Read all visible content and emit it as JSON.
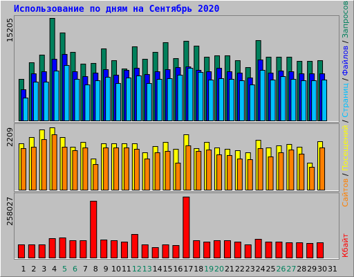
{
  "chart_data": {
    "type": "bar",
    "title": "Использование по дням на Сентябрь 2020",
    "legend_separator": " / ",
    "categories": [
      "1",
      "2",
      "3",
      "4",
      "5",
      "6",
      "7",
      "8",
      "9",
      "10",
      "11",
      "12",
      "13",
      "14",
      "15",
      "16",
      "17",
      "18",
      "19",
      "20",
      "21",
      "22",
      "23",
      "24",
      "25",
      "26",
      "27",
      "28",
      "29",
      "30",
      "31"
    ],
    "category_colors": [
      "#000000",
      "#000000",
      "#000000",
      "#000000",
      "#00805c",
      "#00805c",
      "#000000",
      "#000000",
      "#000000",
      "#000000",
      "#000000",
      "#00805c",
      "#00805c",
      "#000000",
      "#000000",
      "#000000",
      "#000000",
      "#000000",
      "#00805c",
      "#00805c",
      "#000000",
      "#000000",
      "#000000",
      "#000000",
      "#000000",
      "#00805c",
      "#00805c",
      "#000000",
      "#000000",
      "#000000",
      "#000000"
    ],
    "panels": [
      {
        "ylim": [
          0,
          15205
        ],
        "yticks": [
          15205
        ],
        "series": [
          {
            "name": "Запросов",
            "color": "#00805c",
            "values": [
              6162,
              8627,
              9757,
              15205,
              13043,
              10167,
              8421,
              8524,
              10681,
              8935,
              7703,
              10989,
              9140,
              10167,
              11605,
              9243,
              11811,
              11092,
              9448,
              9654,
              9654,
              8935,
              7908,
              11913,
              9448,
              9448,
              9448,
              8832,
              8832,
              8935,
              null
            ]
          },
          {
            "name": "Файлов",
            "color": "#0000ff",
            "values": [
              4622,
              6984,
              7292,
              9140,
              9859,
              7292,
              6573,
              7086,
              7600,
              6778,
              7497,
              7805,
              6881,
              7292,
              7600,
              7908,
              8011,
              7497,
              7292,
              7805,
              7292,
              7086,
              6367,
              9038,
              7086,
              7394,
              7292,
              6984,
              6984,
              6984,
              null
            ]
          },
          {
            "name": "Страниц",
            "color": "#00c0ff",
            "values": [
              3389,
              5751,
              5751,
              7394,
              8216,
              6162,
              5340,
              5957,
              6470,
              5546,
              6367,
              6676,
              5546,
              6162,
              6265,
              6778,
              7805,
              7189,
              6059,
              6265,
              6162,
              5957,
              5340,
              7497,
              6059,
              6573,
              6162,
              5957,
              5957,
              6059,
              null
            ]
          }
        ]
      },
      {
        "ylim": [
          0,
          2209
        ],
        "yticks": [
          2209
        ],
        "series": [
          {
            "name": "Посещений",
            "color": "#ffff00",
            "values": [
              1644,
              1865,
              2135,
              2209,
              1865,
              1521,
              1693,
              1104,
              1644,
              1644,
              1644,
              1644,
              1325,
              1546,
              1693,
              1448,
              1963,
              1472,
              1693,
              1497,
              1448,
              1399,
              1325,
              1767,
              1497,
              1571,
              1620,
              1521,
              957,
              1718,
              null
            ]
          },
          {
            "name": "Сайтов",
            "color": "#ff8000",
            "values": [
              1472,
              1521,
              1791,
              1963,
              1521,
              1399,
              1497,
              908,
              1497,
              1497,
              1497,
              1448,
              1104,
              1325,
              1374,
              957,
              1571,
              1374,
              1423,
              1252,
              1227,
              1104,
              1080,
              1472,
              1178,
              1325,
              1423,
              1276,
              810,
              1497,
              null
            ]
          }
        ]
      },
      {
        "ylim": [
          0,
          258027
        ],
        "yticks": [
          258027
        ],
        "series": [
          {
            "name": "Кбайт",
            "color": "#ff0000",
            "values": [
              55708,
              55708,
              55708,
              82096,
              85028,
              73300,
              73300,
              240424,
              76232,
              73300,
              67436,
              99688,
              55708,
              43980,
              55708,
              52776,
              258027,
              73300,
              67436,
              73300,
              73300,
              67436,
              55708,
              79164,
              67436,
              67436,
              64504,
              64504,
              61572,
              64504,
              null
            ]
          }
        ]
      }
    ]
  }
}
